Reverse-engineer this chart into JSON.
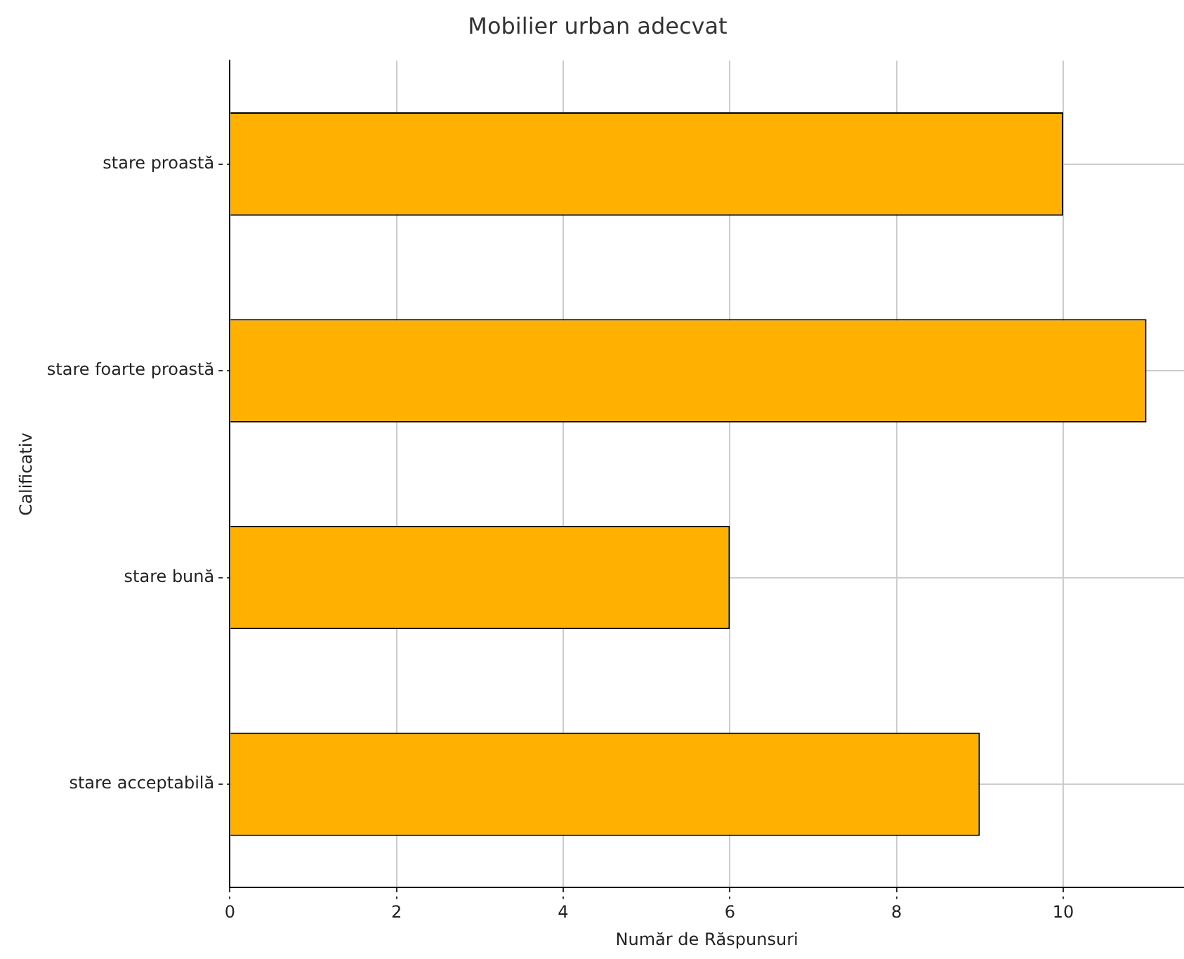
{
  "chart_data": {
    "type": "bar",
    "orientation": "horizontal",
    "title": "Mobilier urban adecvat",
    "xlabel": "Număr de Răspunsuri",
    "ylabel": "Calificativ",
    "categories": [
      "stare proastă",
      "stare foarte proastă",
      "stare bună",
      "stare acceptabilă"
    ],
    "values": [
      10,
      11,
      6,
      9
    ],
    "color": "#ffb000",
    "xlim": [
      0,
      11.45
    ],
    "xticks": [
      0,
      2,
      4,
      6,
      8,
      10
    ],
    "grid": true,
    "legend": false
  }
}
